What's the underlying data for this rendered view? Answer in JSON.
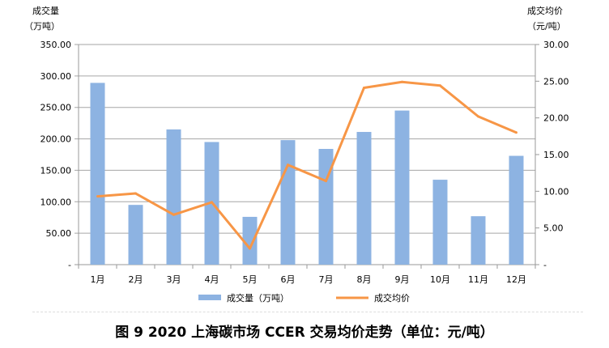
{
  "chart_data": {
    "type": "bar+line",
    "categories": [
      "1月",
      "2月",
      "3月",
      "4月",
      "5月",
      "6月",
      "7月",
      "8月",
      "9月",
      "10月",
      "11月",
      "12月"
    ],
    "series": [
      {
        "name": "成交量（万吨）",
        "type": "bar",
        "axis": "left",
        "color": "#8DB3E2",
        "values": [
          289,
          95,
          215,
          195,
          76,
          198,
          184,
          211,
          245,
          135,
          77,
          173
        ]
      },
      {
        "name": "成交均价",
        "type": "line",
        "axis": "right",
        "color": "#F79646",
        "values": [
          9.3,
          9.7,
          6.8,
          8.5,
          2.2,
          13.6,
          11.4,
          24.1,
          24.9,
          24.4,
          20.2,
          18.0
        ]
      }
    ],
    "left_axis": {
      "label_line1": "成交量",
      "label_line2": "（万吨）",
      "ylim": [
        0,
        350
      ],
      "ticks": [
        "-",
        "50.00",
        "100.00",
        "150.00",
        "200.00",
        "250.00",
        "300.00",
        "350.00"
      ]
    },
    "right_axis": {
      "label_line1": "成交均价",
      "label_line2": "（元/吨）",
      "ylim": [
        0,
        30
      ],
      "ticks": [
        "-",
        "5.00",
        "10.00",
        "15.00",
        "20.00",
        "25.00",
        "30.00"
      ]
    },
    "grid": true,
    "legend": "bottom"
  },
  "caption": "图 9 2020 上海碳市场 CCER 交易均价走势（单位：元/吨）"
}
